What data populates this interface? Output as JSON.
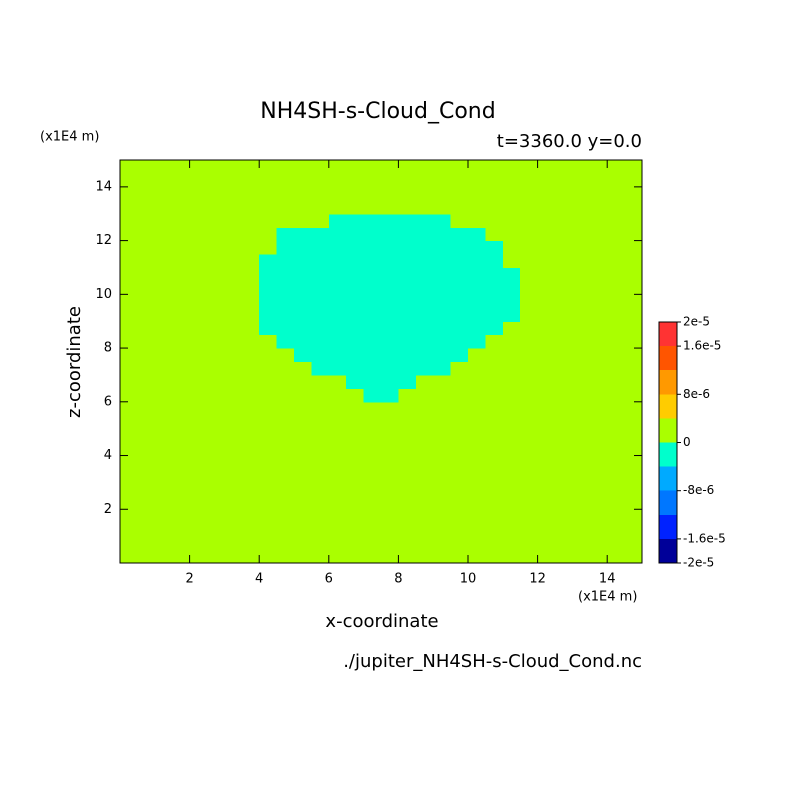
{
  "chart_data": {
    "type": "contour",
    "title": "NH4SH-s-Cloud_Cond",
    "subtitle": "t=3360.0 y=0.0",
    "y_unit": "(x1E4 m)",
    "x_unit": "(x1E4 m)",
    "xlabel": "x-coordinate",
    "ylabel": "z-coordinate",
    "footer": "./jupiter_NH4SH-s-Cloud_Cond.nc",
    "xlim": [
      0,
      15
    ],
    "ylim": [
      0,
      15
    ],
    "xticks": [
      2,
      4,
      6,
      8,
      10,
      12,
      14
    ],
    "yticks": [
      2,
      4,
      6,
      8,
      10,
      12,
      14
    ],
    "x": [
      0.25,
      0.75,
      1.25,
      1.75,
      2.25,
      2.75,
      3.25,
      3.75,
      4.25,
      4.75,
      5.25,
      5.75,
      6.25,
      6.75,
      7.25,
      7.75,
      8.25,
      8.75,
      9.25,
      9.75,
      10.25,
      10.75,
      11.25,
      11.75,
      12.25,
      12.75,
      13.25,
      13.75,
      14.25,
      14.75
    ],
    "y": [
      0.25,
      0.75,
      1.25,
      1.75,
      2.25,
      2.75,
      3.25,
      3.75,
      4.25,
      4.75,
      5.25,
      5.75,
      6.25,
      6.75,
      7.25,
      7.75,
      8.25,
      8.75,
      9.25,
      9.75,
      10.25,
      10.75,
      11.25,
      11.75,
      12.25,
      12.75,
      13.25,
      13.75,
      14.25,
      14.75
    ],
    "values": [
      [
        0,
        0,
        0,
        0,
        0,
        0,
        0,
        0,
        0,
        0,
        0,
        0,
        0,
        0,
        0,
        0,
        0,
        0,
        0,
        0,
        0,
        0,
        0,
        0,
        0,
        0,
        0,
        0,
        0,
        0
      ],
      [
        0,
        0,
        0,
        0,
        0,
        0,
        0,
        0,
        0,
        0,
        0,
        0,
        0,
        0,
        0,
        0,
        0,
        0,
        0,
        0,
        0,
        0,
        0,
        0,
        0,
        0,
        0,
        0,
        0,
        0
      ],
      [
        0,
        0,
        0,
        0,
        0,
        0,
        0,
        0,
        0,
        0,
        0,
        0,
        0,
        0,
        0,
        0,
        0,
        0,
        0,
        0,
        0,
        0,
        0,
        0,
        0,
        0,
        0,
        0,
        0,
        0
      ],
      [
        0,
        0,
        0,
        0,
        0,
        0,
        0,
        0,
        0,
        0,
        0,
        0,
        0,
        0,
        0,
        0,
        0,
        0,
        0,
        0,
        0,
        0,
        0,
        0,
        0,
        0,
        0,
        0,
        0,
        0
      ],
      [
        0,
        0,
        0,
        0,
        0,
        0,
        0,
        0,
        0,
        0,
        0,
        0,
        0,
        0,
        0,
        0,
        0,
        0,
        0,
        0,
        0,
        0,
        0,
        0,
        0,
        0,
        0,
        0,
        0,
        0
      ],
      [
        0,
        0,
        0,
        0,
        0,
        0,
        0,
        0,
        0,
        0,
        0,
        0,
        0,
        0,
        0,
        0,
        0,
        0,
        0,
        0,
        0,
        0,
        0,
        0,
        0,
        0,
        0,
        0,
        0,
        0
      ],
      [
        0,
        0,
        0,
        0,
        0,
        0,
        0,
        0,
        0,
        0,
        0,
        0,
        0,
        0,
        0,
        0,
        0,
        0,
        0,
        0,
        0,
        0,
        0,
        0,
        0,
        0,
        0,
        0,
        0,
        0
      ],
      [
        0,
        0,
        0,
        0,
        0,
        0,
        0,
        0,
        0,
        0,
        0,
        0,
        0,
        0,
        0,
        0,
        0,
        0,
        0,
        0,
        0,
        0,
        0,
        0,
        0,
        0,
        0,
        0,
        0,
        0
      ],
      [
        0,
        0,
        0,
        0,
        0,
        0,
        0,
        0,
        0,
        0,
        0,
        0,
        0,
        0,
        0,
        0,
        0,
        0,
        0,
        0,
        0,
        0,
        0,
        0,
        0,
        0,
        0,
        0,
        0,
        0
      ],
      [
        0,
        0,
        0,
        0,
        0,
        0,
        0,
        0,
        0,
        0,
        0,
        0,
        0,
        0,
        0,
        0,
        0,
        0,
        0,
        0,
        0,
        0,
        0,
        0,
        0,
        0,
        0,
        0,
        0,
        0
      ],
      [
        0,
        0,
        0,
        0,
        0,
        0,
        0,
        0,
        0,
        0,
        0,
        0,
        0,
        0,
        0,
        0,
        0,
        0,
        0,
        0,
        0,
        0,
        0,
        0,
        0,
        0,
        0,
        0,
        0,
        0
      ],
      [
        0,
        0,
        0,
        0,
        0,
        0,
        0,
        0,
        0,
        0,
        0,
        0,
        0,
        0,
        0,
        0,
        0,
        0,
        0,
        0,
        0,
        0,
        0,
        0,
        0,
        0,
        0,
        0,
        0,
        0
      ],
      [
        0,
        0,
        0,
        0,
        0,
        0,
        0,
        0,
        0,
        0,
        0,
        0,
        0,
        0,
        -2e-06,
        -2e-06,
        0,
        0,
        0,
        0,
        0,
        0,
        0,
        0,
        0,
        0,
        0,
        0,
        0,
        0
      ],
      [
        0,
        0,
        0,
        0,
        0,
        0,
        0,
        0,
        0,
        0,
        0,
        0,
        0,
        -2e-06,
        -2e-06,
        -2e-06,
        -2e-06,
        0,
        0,
        0,
        0,
        0,
        0,
        0,
        0,
        0,
        0,
        0,
        0,
        0
      ],
      [
        0,
        0,
        0,
        0,
        0,
        0,
        0,
        0,
        0,
        0,
        0,
        -2e-06,
        -2e-06,
        -2e-06,
        -2e-06,
        -2e-06,
        -2e-06,
        -2e-06,
        -2e-06,
        0,
        0,
        0,
        0,
        0,
        0,
        0,
        0,
        0,
        0,
        0
      ],
      [
        0,
        0,
        0,
        0,
        0,
        0,
        0,
        0,
        0,
        0,
        -2e-06,
        -2e-06,
        -2e-06,
        -2e-06,
        -2e-06,
        -2e-06,
        -2e-06,
        -2e-06,
        -2e-06,
        -2e-06,
        0,
        0,
        0,
        0,
        0,
        0,
        0,
        0,
        0,
        0
      ],
      [
        0,
        0,
        0,
        0,
        0,
        0,
        0,
        0,
        0,
        -2e-06,
        -2e-06,
        -2e-06,
        -2e-06,
        -2e-06,
        -2e-06,
        -2e-06,
        -2e-06,
        -2e-06,
        -2e-06,
        -2e-06,
        -2e-06,
        0,
        0,
        0,
        0,
        0,
        0,
        0,
        0,
        0
      ],
      [
        0,
        0,
        0,
        0,
        0,
        0,
        0,
        0,
        -2e-06,
        -2e-06,
        -2e-06,
        -2e-06,
        -2e-06,
        -2e-06,
        -2e-06,
        -2e-06,
        -2e-06,
        -2e-06,
        -2e-06,
        -2e-06,
        -2e-06,
        -2e-06,
        0,
        0,
        0,
        0,
        0,
        0,
        0,
        0
      ],
      [
        0,
        0,
        0,
        0,
        0,
        0,
        0,
        0,
        -2e-06,
        -2e-06,
        -2e-06,
        -2e-06,
        -2e-06,
        -2e-06,
        -2e-06,
        -2e-06,
        -2e-06,
        -2e-06,
        -2e-06,
        -2e-06,
        -2e-06,
        -2e-06,
        -2e-06,
        0,
        0,
        0,
        0,
        0,
        0,
        0
      ],
      [
        0,
        0,
        0,
        0,
        0,
        0,
        0,
        0,
        -2e-06,
        -2e-06,
        -2e-06,
        -2e-06,
        -2e-06,
        -2e-06,
        -2e-06,
        -2e-06,
        -2e-06,
        -2e-06,
        -2e-06,
        -2e-06,
        -2e-06,
        -2e-06,
        -2e-06,
        0,
        0,
        0,
        0,
        0,
        0,
        0
      ],
      [
        0,
        0,
        0,
        0,
        0,
        0,
        0,
        0,
        -2e-06,
        -2e-06,
        -2e-06,
        -2e-06,
        -2e-06,
        -2e-06,
        -2e-06,
        -2e-06,
        -2e-06,
        -2e-06,
        -2e-06,
        -2e-06,
        -2e-06,
        -2e-06,
        -2e-06,
        0,
        0,
        0,
        0,
        0,
        0,
        0
      ],
      [
        0,
        0,
        0,
        0,
        0,
        0,
        0,
        0,
        -2e-06,
        -2e-06,
        -2e-06,
        -2e-06,
        -2e-06,
        -2e-06,
        -2e-06,
        -2e-06,
        -2e-06,
        -2e-06,
        -2e-06,
        -2e-06,
        -2e-06,
        -2e-06,
        -2e-06,
        0,
        0,
        0,
        0,
        0,
        0,
        0
      ],
      [
        0,
        0,
        0,
        0,
        0,
        0,
        0,
        0,
        -2e-06,
        -2e-06,
        -2e-06,
        -2e-06,
        -2e-06,
        -2e-06,
        -2e-06,
        -2e-06,
        -2e-06,
        -2e-06,
        -2e-06,
        -2e-06,
        -2e-06,
        -2e-06,
        0,
        0,
        0,
        0,
        0,
        0,
        0,
        0
      ],
      [
        0,
        0,
        0,
        0,
        0,
        0,
        0,
        0,
        0,
        -2e-06,
        -2e-06,
        -2e-06,
        -2e-06,
        -2e-06,
        -2e-06,
        -2e-06,
        -2e-06,
        -2e-06,
        -2e-06,
        -2e-06,
        -2e-06,
        -2e-06,
        0,
        0,
        0,
        0,
        0,
        0,
        0,
        0
      ],
      [
        0,
        0,
        0,
        0,
        0,
        0,
        0,
        0,
        0,
        -2e-06,
        -2e-06,
        -2e-06,
        -2e-06,
        -2e-06,
        -2e-06,
        -2e-06,
        -2e-06,
        -2e-06,
        -2e-06,
        -2e-06,
        -2e-06,
        0,
        0,
        0,
        0,
        0,
        0,
        0,
        0,
        0
      ],
      [
        0,
        0,
        0,
        0,
        0,
        0,
        0,
        0,
        0,
        0,
        0,
        0,
        -2e-06,
        -2e-06,
        -2e-06,
        -2e-06,
        -2e-06,
        -2e-06,
        -2e-06,
        0,
        0,
        0,
        0,
        0,
        0,
        0,
        0,
        0,
        0,
        0
      ],
      [
        0,
        0,
        0,
        0,
        0,
        0,
        0,
        0,
        0,
        0,
        0,
        0,
        0,
        0,
        0,
        0,
        0,
        0,
        0,
        0,
        0,
        0,
        0,
        0,
        0,
        0,
        0,
        0,
        0,
        0
      ],
      [
        0,
        0,
        0,
        0,
        0,
        0,
        0,
        0,
        0,
        0,
        0,
        0,
        0,
        0,
        0,
        0,
        0,
        0,
        0,
        0,
        0,
        0,
        0,
        0,
        0,
        0,
        0,
        0,
        0,
        0
      ],
      [
        0,
        0,
        0,
        0,
        0,
        0,
        0,
        0,
        0,
        0,
        0,
        0,
        0,
        0,
        0,
        0,
        0,
        0,
        0,
        0,
        0,
        0,
        0,
        0,
        0,
        0,
        0,
        0,
        0,
        0
      ],
      [
        0,
        0,
        0,
        0,
        0,
        0,
        0,
        0,
        0,
        0,
        0,
        0,
        0,
        0,
        0,
        0,
        0,
        0,
        0,
        0,
        0,
        0,
        0,
        0,
        0,
        0,
        0,
        0,
        0,
        0
      ]
    ],
    "levels": [
      -2e-05,
      -1.6e-05,
      -1.2e-05,
      -8e-06,
      -4e-06,
      0,
      4e-06,
      8e-06,
      1.2e-05,
      1.6e-05,
      2e-05
    ],
    "colors": [
      "#000099",
      "#0022ff",
      "#0077ff",
      "#00aaff",
      "#00ffcc",
      "#aaff00",
      "#ffcc00",
      "#ff9900",
      "#ff5500",
      "#ff3333"
    ],
    "colorbar_ticks": [
      {
        "value": -2e-05,
        "label": "-2e-5"
      },
      {
        "value": -1.6e-05,
        "label": "-1.6e-5"
      },
      {
        "value": -8e-06,
        "label": "-8e-6"
      },
      0,
      {
        "value": 8e-06,
        "label": "8e-6"
      },
      {
        "value": 1.6e-05,
        "label": "1.6e-5"
      },
      {
        "value": 2e-05,
        "label": "2e-5"
      }
    ]
  }
}
